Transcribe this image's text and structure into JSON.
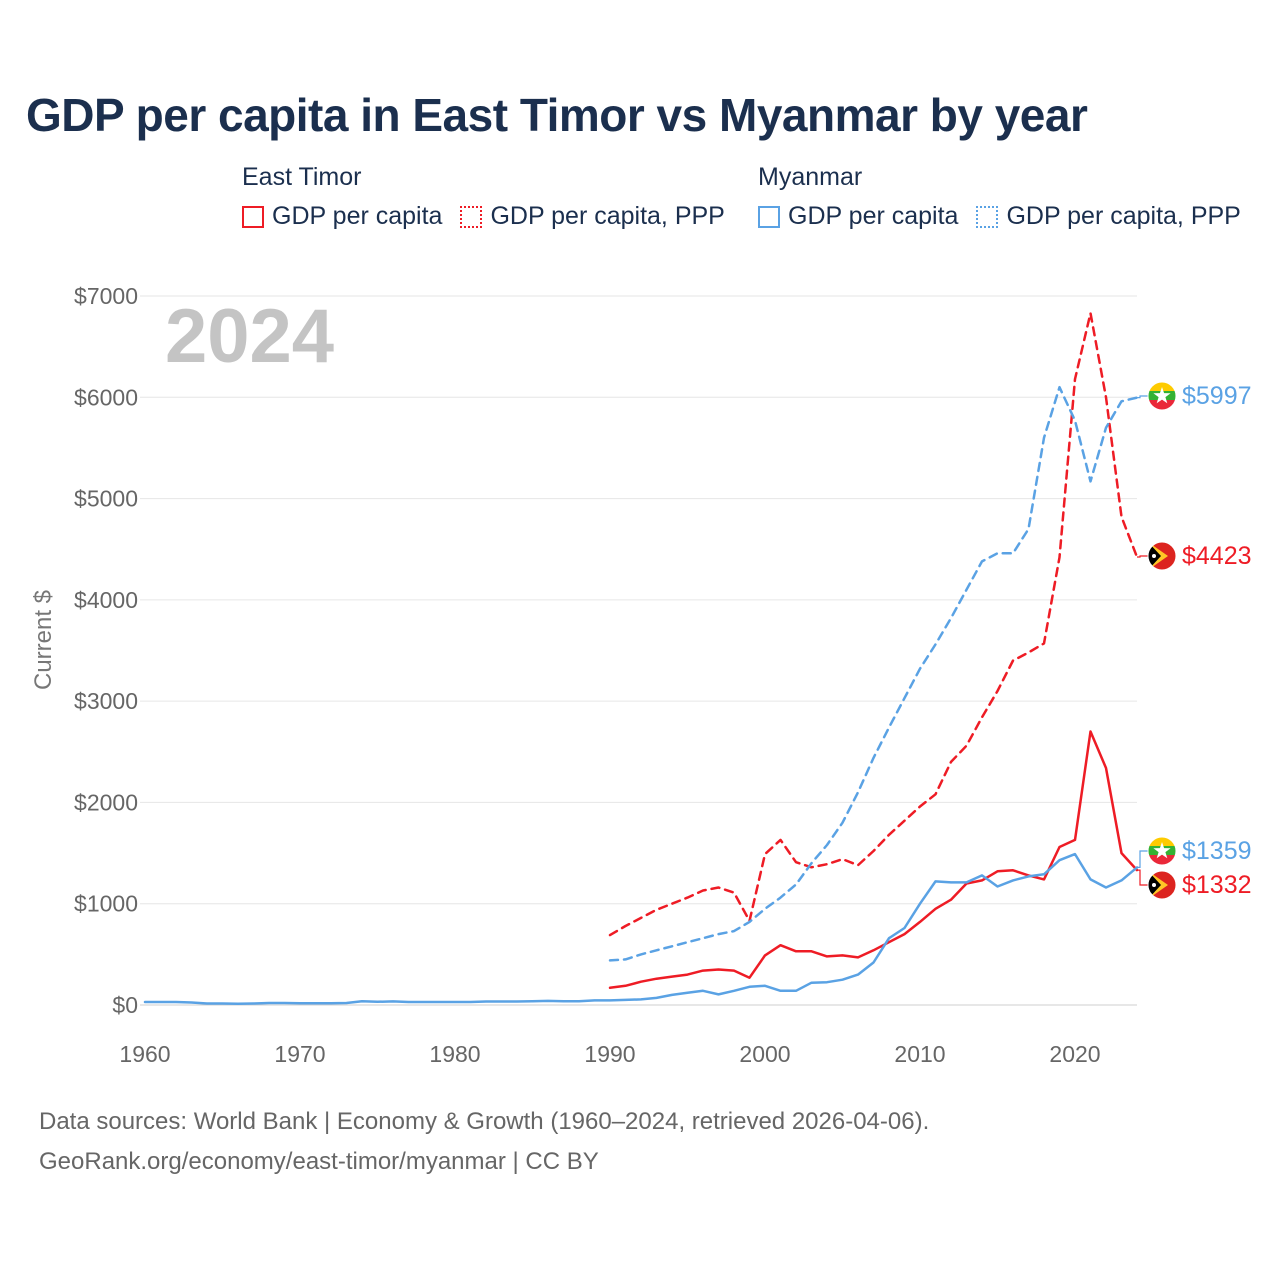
{
  "title": "GDP per capita in East Timor vs Myanmar by year",
  "legend": [
    {
      "country": "East Timor",
      "color": "#ee1c25",
      "items": [
        {
          "label": "GDP per capita",
          "style": "solid"
        },
        {
          "label": "GDP per capita, PPP",
          "style": "dotted"
        }
      ]
    },
    {
      "country": "Myanmar",
      "color": "#5aa2e4",
      "items": [
        {
          "label": "GDP per capita",
          "style": "solid"
        },
        {
          "label": "GDP per capita, PPP",
          "style": "dotted"
        }
      ]
    }
  ],
  "year_watermark": "2024",
  "end_labels": [
    "$5997",
    "$4423",
    "$1359",
    "$1332"
  ],
  "footer": {
    "source_line": "Data sources: World Bank | Economy & Growth (1960–2024, retrieved 2026-04-06).",
    "url_line": "GeoRank.org/economy/east-timor/myanmar | CC BY"
  },
  "chart_data": {
    "type": "line",
    "title": "GDP per capita in East Timor vs Myanmar by year",
    "xlabel": "",
    "ylabel": "Current $",
    "xlim": [
      1960,
      2024
    ],
    "ylim": [
      0,
      7000
    ],
    "x_ticks": [
      1960,
      1970,
      1980,
      1990,
      2000,
      2010,
      2020
    ],
    "x_tick_labels": [
      "1960",
      "1970",
      "1980",
      "1990",
      "2000",
      "2010",
      "2020"
    ],
    "y_ticks": [
      0,
      1000,
      2000,
      3000,
      4000,
      5000,
      6000,
      7000
    ],
    "y_tick_labels": [
      "$0",
      "$1000",
      "$2000",
      "$3000",
      "$4000",
      "$5000",
      "$6000",
      "$7000"
    ],
    "grid": true,
    "series": [
      {
        "name": "East Timor GDP per capita",
        "country": "East Timor",
        "color": "#ee1c25",
        "dash": "solid",
        "x": [
          1990,
          1991,
          1992,
          1993,
          1994,
          1995,
          1996,
          1997,
          1998,
          1999,
          2000,
          2001,
          2002,
          2003,
          2004,
          2005,
          2006,
          2007,
          2008,
          2009,
          2010,
          2011,
          2012,
          2013,
          2014,
          2015,
          2016,
          2017,
          2018,
          2019,
          2020,
          2021,
          2022,
          2023,
          2024
        ],
        "values": [
          170,
          190,
          230,
          260,
          280,
          300,
          340,
          350,
          340,
          270,
          490,
          590,
          530,
          530,
          480,
          490,
          470,
          540,
          620,
          700,
          820,
          950,
          1040,
          1200,
          1230,
          1320,
          1330,
          1280,
          1240,
          1560,
          1630,
          2700,
          2340,
          1500,
          1332
        ]
      },
      {
        "name": "East Timor GDP per capita, PPP",
        "country": "East Timor",
        "color": "#ee1c25",
        "dash": "dashed",
        "x": [
          1990,
          1991,
          1992,
          1993,
          1994,
          1995,
          1996,
          1997,
          1998,
          1999,
          2000,
          2001,
          2002,
          2003,
          2004,
          2005,
          2006,
          2007,
          2008,
          2009,
          2010,
          2011,
          2012,
          2013,
          2014,
          2015,
          2016,
          2017,
          2018,
          2019,
          2020,
          2021,
          2022,
          2023,
          2024
        ],
        "values": [
          690,
          780,
          860,
          940,
          1000,
          1060,
          1130,
          1160,
          1110,
          830,
          1490,
          1630,
          1410,
          1360,
          1390,
          1440,
          1380,
          1520,
          1680,
          1820,
          1960,
          2080,
          2400,
          2560,
          2840,
          3100,
          3400,
          3480,
          3570,
          4420,
          6180,
          6830,
          6000,
          4820,
          4423
        ]
      },
      {
        "name": "Myanmar GDP per capita",
        "country": "Myanmar",
        "color": "#5aa2e4",
        "dash": "solid",
        "x": [
          1960,
          1961,
          1962,
          1963,
          1964,
          1965,
          1966,
          1967,
          1968,
          1969,
          1970,
          1971,
          1972,
          1973,
          1974,
          1975,
          1976,
          1977,
          1978,
          1979,
          1980,
          1981,
          1982,
          1983,
          1984,
          1985,
          1986,
          1987,
          1988,
          1989,
          1990,
          1991,
          1992,
          1993,
          1994,
          1995,
          1996,
          1997,
          1998,
          1999,
          2000,
          2001,
          2002,
          2003,
          2004,
          2005,
          2006,
          2007,
          2008,
          2009,
          2010,
          2011,
          2012,
          2013,
          2014,
          2015,
          2016,
          2017,
          2018,
          2019,
          2020,
          2021,
          2022,
          2023,
          2024
        ],
        "values": [
          30,
          30,
          30,
          25,
          15,
          15,
          12,
          15,
          20,
          20,
          18,
          18,
          18,
          20,
          38,
          32,
          36,
          30,
          30,
          30,
          30,
          30,
          35,
          35,
          35,
          38,
          40,
          38,
          38,
          45,
          45,
          50,
          55,
          70,
          100,
          120,
          140,
          105,
          140,
          180,
          190,
          140,
          140,
          220,
          225,
          250,
          300,
          420,
          660,
          760,
          1000,
          1220,
          1210,
          1210,
          1280,
          1170,
          1230,
          1270,
          1290,
          1430,
          1490,
          1240,
          1160,
          1230,
          1359
        ]
      },
      {
        "name": "Myanmar GDP per capita, PPP",
        "country": "Myanmar",
        "color": "#5aa2e4",
        "dash": "dashed",
        "x": [
          1990,
          1991,
          1992,
          1993,
          1994,
          1995,
          1996,
          1997,
          1998,
          1999,
          2000,
          2001,
          2002,
          2003,
          2004,
          2005,
          2006,
          2007,
          2008,
          2009,
          2010,
          2011,
          2012,
          2013,
          2014,
          2015,
          2016,
          2017,
          2018,
          2019,
          2020,
          2021,
          2022,
          2023,
          2024
        ],
        "values": [
          440,
          450,
          500,
          540,
          580,
          620,
          660,
          700,
          730,
          820,
          950,
          1060,
          1190,
          1400,
          1580,
          1800,
          2100,
          2440,
          2740,
          3030,
          3320,
          3560,
          3820,
          4100,
          4380,
          4460,
          4460,
          4700,
          5600,
          6100,
          5770,
          5170,
          5700,
          5960,
          5997
        ]
      }
    ],
    "end_values": [
      {
        "country": "Myanmar",
        "metric": "GDP per capita, PPP",
        "value": 5997
      },
      {
        "country": "East Timor",
        "metric": "GDP per capita, PPP",
        "value": 4423
      },
      {
        "country": "Myanmar",
        "metric": "GDP per capita",
        "value": 1359
      },
      {
        "country": "East Timor",
        "metric": "GDP per capita",
        "value": 1332
      }
    ]
  }
}
